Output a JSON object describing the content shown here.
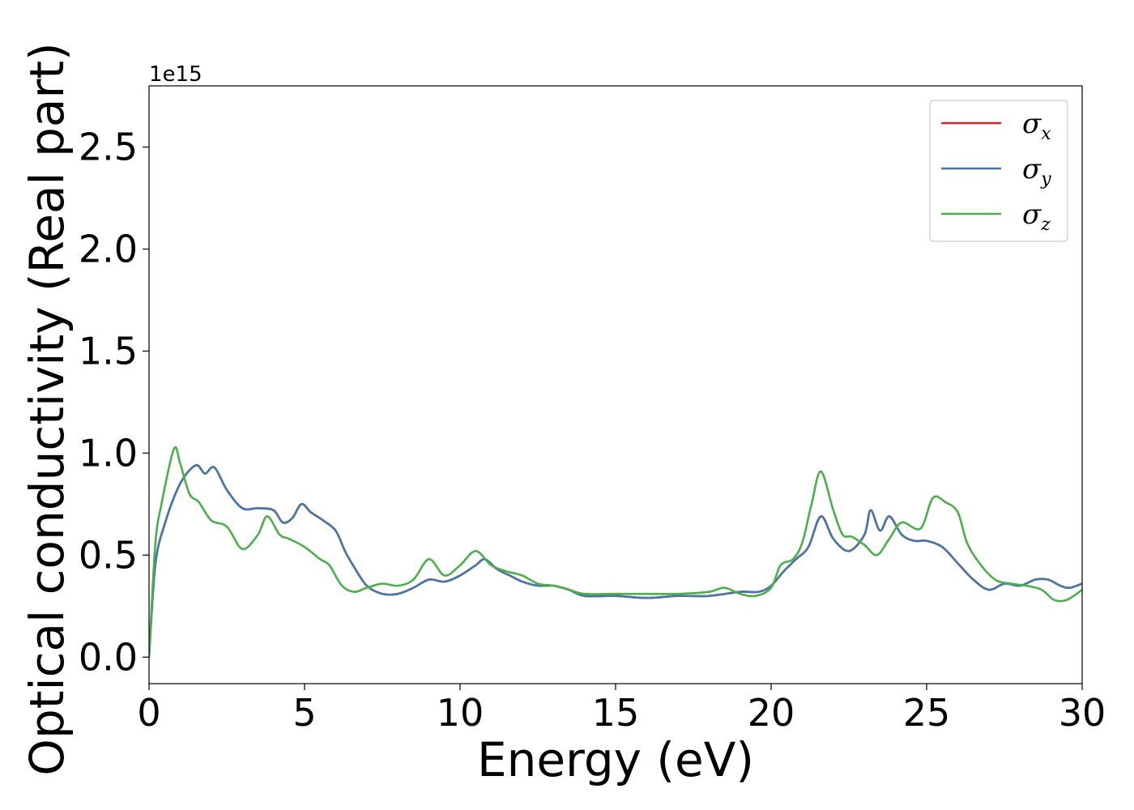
{
  "chart_data": {
    "type": "line",
    "title": "",
    "xlabel": "Energy (eV)",
    "ylabel": "Optical conductivity (Real part)",
    "y_offset_text": "1e15",
    "xlim": [
      0,
      30
    ],
    "ylim": [
      -0.13,
      2.8
    ],
    "x_ticks": [
      0,
      5,
      10,
      15,
      20,
      25,
      30
    ],
    "x_tick_labels": [
      "0",
      "5",
      "10",
      "15",
      "20",
      "25",
      "30"
    ],
    "y_ticks": [
      0.0,
      0.5,
      1.0,
      1.5,
      2.0,
      2.5
    ],
    "y_tick_labels": [
      "0.0",
      "0.5",
      "1.0",
      "1.5",
      "2.0",
      "2.5"
    ],
    "grid": false,
    "legend_position": "top-right",
    "series": [
      {
        "name": "σx",
        "symbol": "σ",
        "subscript": "x",
        "color": "#d62728",
        "x": [
          0,
          0.2,
          0.5,
          1.0,
          1.5,
          1.8,
          2.1,
          2.5,
          3.0,
          3.5,
          4.0,
          4.3,
          4.6,
          4.9,
          5.2,
          5.6,
          6.0,
          6.3,
          6.6,
          7.0,
          7.5,
          8.0,
          8.5,
          9.0,
          9.5,
          10.0,
          10.5,
          10.8,
          11.2,
          11.6,
          12.0,
          12.5,
          13.0,
          13.5,
          14.0,
          15.0,
          16.0,
          17.0,
          18.0,
          19.0,
          19.6,
          20.0,
          20.4,
          20.8,
          21.2,
          21.6,
          22.0,
          22.5,
          23.0,
          23.2,
          23.5,
          23.8,
          24.2,
          24.6,
          25.0,
          25.5,
          26.0,
          26.5,
          27.0,
          27.5,
          28.0,
          28.5,
          28.9,
          29.3,
          29.6,
          30.0
        ],
        "y": [
          0.0,
          0.45,
          0.65,
          0.85,
          0.94,
          0.9,
          0.93,
          0.82,
          0.73,
          0.73,
          0.72,
          0.66,
          0.68,
          0.75,
          0.71,
          0.67,
          0.62,
          0.52,
          0.44,
          0.35,
          0.31,
          0.31,
          0.34,
          0.38,
          0.37,
          0.4,
          0.45,
          0.48,
          0.43,
          0.4,
          0.37,
          0.35,
          0.35,
          0.33,
          0.3,
          0.3,
          0.29,
          0.3,
          0.3,
          0.32,
          0.32,
          0.35,
          0.42,
          0.48,
          0.54,
          0.69,
          0.58,
          0.52,
          0.6,
          0.72,
          0.62,
          0.69,
          0.6,
          0.57,
          0.57,
          0.54,
          0.46,
          0.38,
          0.33,
          0.36,
          0.35,
          0.38,
          0.38,
          0.35,
          0.34,
          0.36
        ]
      },
      {
        "name": "σy",
        "symbol": "σ",
        "subscript": "y",
        "color": "#4477aa",
        "x": [
          0,
          0.2,
          0.5,
          1.0,
          1.5,
          1.8,
          2.1,
          2.5,
          3.0,
          3.5,
          4.0,
          4.3,
          4.6,
          4.9,
          5.2,
          5.6,
          6.0,
          6.3,
          6.6,
          7.0,
          7.5,
          8.0,
          8.5,
          9.0,
          9.5,
          10.0,
          10.5,
          10.8,
          11.2,
          11.6,
          12.0,
          12.5,
          13.0,
          13.5,
          14.0,
          15.0,
          16.0,
          17.0,
          18.0,
          19.0,
          19.6,
          20.0,
          20.4,
          20.8,
          21.2,
          21.6,
          22.0,
          22.5,
          23.0,
          23.2,
          23.5,
          23.8,
          24.2,
          24.6,
          25.0,
          25.5,
          26.0,
          26.5,
          27.0,
          27.5,
          28.0,
          28.5,
          28.9,
          29.3,
          29.6,
          30.0
        ],
        "y": [
          0.0,
          0.45,
          0.65,
          0.85,
          0.94,
          0.9,
          0.93,
          0.82,
          0.73,
          0.73,
          0.72,
          0.66,
          0.68,
          0.75,
          0.71,
          0.67,
          0.62,
          0.52,
          0.44,
          0.35,
          0.31,
          0.31,
          0.34,
          0.38,
          0.37,
          0.4,
          0.45,
          0.48,
          0.43,
          0.4,
          0.37,
          0.35,
          0.35,
          0.33,
          0.3,
          0.3,
          0.29,
          0.3,
          0.3,
          0.32,
          0.32,
          0.35,
          0.42,
          0.48,
          0.54,
          0.69,
          0.58,
          0.52,
          0.6,
          0.72,
          0.62,
          0.69,
          0.6,
          0.57,
          0.57,
          0.54,
          0.46,
          0.38,
          0.33,
          0.36,
          0.35,
          0.38,
          0.38,
          0.35,
          0.34,
          0.36
        ]
      },
      {
        "name": "σz",
        "symbol": "σ",
        "subscript": "z",
        "color": "#4daf4a",
        "x": [
          0,
          0.2,
          0.4,
          0.8,
          1.0,
          1.3,
          1.6,
          2.0,
          2.5,
          3.0,
          3.5,
          3.8,
          4.2,
          4.5,
          5.0,
          5.5,
          5.8,
          6.2,
          6.6,
          7.0,
          7.5,
          8.0,
          8.5,
          9.0,
          9.5,
          10.0,
          10.5,
          11.0,
          11.5,
          12.0,
          12.5,
          13.0,
          13.5,
          14.0,
          15.0,
          16.0,
          17.0,
          18.0,
          18.5,
          19.0,
          19.5,
          20.0,
          20.3,
          20.7,
          21.0,
          21.3,
          21.6,
          22.0,
          22.3,
          22.6,
          23.0,
          23.4,
          23.8,
          24.2,
          24.8,
          25.2,
          25.6,
          26.0,
          26.3,
          26.7,
          27.2,
          27.7,
          28.2,
          28.7,
          29.1,
          29.5,
          30.0
        ],
        "y": [
          0.0,
          0.55,
          0.75,
          1.02,
          0.95,
          0.8,
          0.76,
          0.67,
          0.64,
          0.53,
          0.6,
          0.69,
          0.6,
          0.58,
          0.54,
          0.48,
          0.45,
          0.35,
          0.32,
          0.34,
          0.36,
          0.35,
          0.38,
          0.48,
          0.4,
          0.45,
          0.52,
          0.45,
          0.42,
          0.4,
          0.36,
          0.35,
          0.33,
          0.31,
          0.31,
          0.31,
          0.31,
          0.32,
          0.34,
          0.31,
          0.3,
          0.34,
          0.45,
          0.48,
          0.56,
          0.75,
          0.91,
          0.72,
          0.6,
          0.59,
          0.55,
          0.5,
          0.58,
          0.66,
          0.63,
          0.78,
          0.76,
          0.71,
          0.56,
          0.46,
          0.38,
          0.36,
          0.35,
          0.33,
          0.28,
          0.28,
          0.33
        ]
      }
    ]
  }
}
